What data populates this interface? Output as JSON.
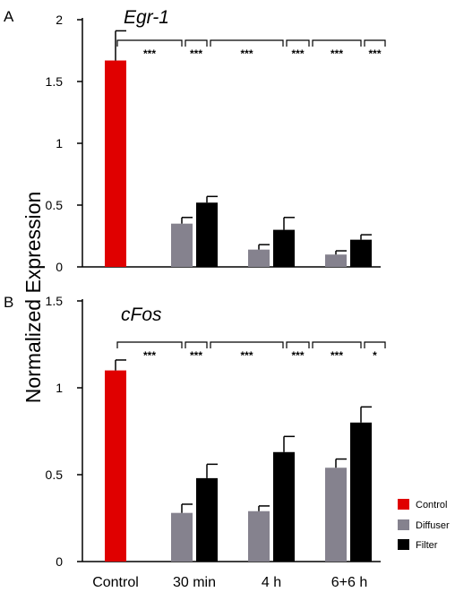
{
  "figure": {
    "ylabel": "Normalized Expression",
    "categories": [
      "Control",
      "30 min",
      "4 h",
      "6+6 h"
    ]
  },
  "legend": [
    {
      "label": "Control",
      "color": "#e00000"
    },
    {
      "label": "Diffuser",
      "color": "#85828e"
    },
    {
      "label": "Filter",
      "color": "#000000"
    }
  ],
  "chart_data": [
    {
      "type": "bar",
      "panel": "A",
      "title": "Egr-1",
      "ylabel": "Normalized Expression",
      "categories": [
        "Control",
        "30 min",
        "4 h",
        "6+6 h"
      ],
      "ylim": [
        0,
        2
      ],
      "yticks": [
        0,
        0.5,
        1,
        1.5,
        2
      ],
      "ytick_labels": [
        "0",
        "0.5",
        "1",
        "1.5",
        "2"
      ],
      "series": [
        {
          "name": "Control",
          "color": "#e00000",
          "values": [
            1.67,
            null,
            null,
            null
          ],
          "errors": [
            0.24,
            null,
            null,
            null
          ]
        },
        {
          "name": "Diffuser",
          "color": "#85828e",
          "values": [
            null,
            0.35,
            0.14,
            0.1
          ],
          "errors": [
            null,
            0.05,
            0.04,
            0.03
          ]
        },
        {
          "name": "Filter",
          "color": "#000000",
          "values": [
            null,
            0.52,
            0.3,
            0.22
          ],
          "errors": [
            null,
            0.05,
            0.1,
            0.04
          ]
        }
      ],
      "significance": [
        "***",
        "***",
        "***",
        "***",
        "***",
        "***"
      ]
    },
    {
      "type": "bar",
      "panel": "B",
      "title": "cFos",
      "ylabel": "Normalized Expression",
      "categories": [
        "Control",
        "30 min",
        "4 h",
        "6+6 h"
      ],
      "ylim": [
        0,
        1.5
      ],
      "yticks": [
        0,
        0.5,
        1,
        1.5
      ],
      "ytick_labels": [
        "0",
        "0.5",
        "1",
        "1.5"
      ],
      "series": [
        {
          "name": "Control",
          "color": "#e00000",
          "values": [
            1.1,
            null,
            null,
            null
          ],
          "errors": [
            0.06,
            null,
            null,
            null
          ]
        },
        {
          "name": "Diffuser",
          "color": "#85828e",
          "values": [
            null,
            0.28,
            0.29,
            0.54
          ],
          "errors": [
            null,
            0.05,
            0.03,
            0.05
          ]
        },
        {
          "name": "Filter",
          "color": "#000000",
          "values": [
            null,
            0.48,
            0.63,
            0.8
          ],
          "errors": [
            null,
            0.08,
            0.09,
            0.09
          ]
        }
      ],
      "significance": [
        "***",
        "***",
        "***",
        "***",
        "***",
        "*"
      ]
    }
  ]
}
